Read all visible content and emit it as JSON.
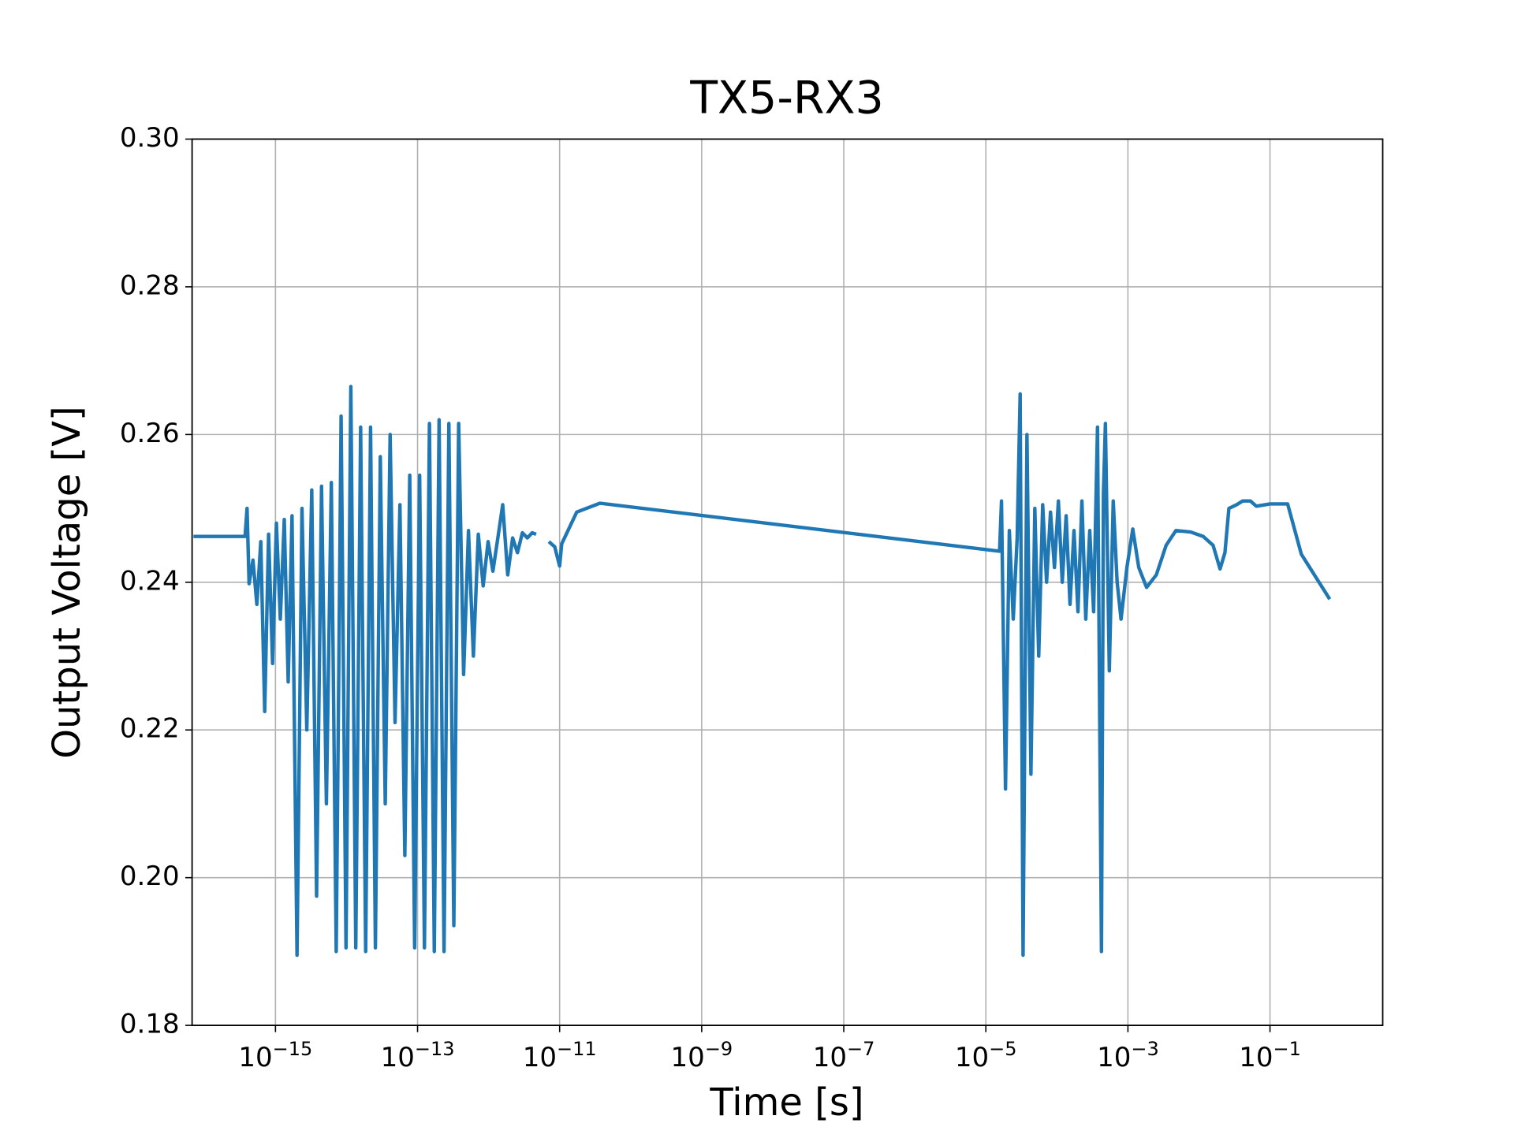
{
  "chart_data": {
    "type": "line",
    "title": "TX5-RX3",
    "x_label": "Time [s]",
    "y_label": "Output Voltage [V]",
    "xscale": "log",
    "grid": true,
    "xlim": [
      6.7e-17,
      3.86
    ],
    "ylim": [
      0.18,
      0.3
    ],
    "xticks": [
      {
        "value": 1e-15,
        "label": "10−15"
      },
      {
        "value": 1e-13,
        "label": "10−13"
      },
      {
        "value": 1e-11,
        "label": "10−11"
      },
      {
        "value": 1e-09,
        "label": "10−9"
      },
      {
        "value": 1e-07,
        "label": "10−7"
      },
      {
        "value": 1e-05,
        "label": "10−5"
      },
      {
        "value": 0.001,
        "label": "10−3"
      },
      {
        "value": 0.1,
        "label": "10−1"
      }
    ],
    "yticks": [
      0.18,
      {
        "value": 0.2,
        "label": "0.20"
      },
      0.22,
      0.24,
      0.26,
      0.28,
      {
        "value": 0.3,
        "label": "0.30"
      }
    ],
    "series": [
      {
        "name": "TX5-RX3",
        "color": "#1f77b4",
        "x": [
          7e-17,
          3.73e-16,
          3.98e-16,
          4.25e-16,
          4.82e-16,
          5.47e-16,
          6.21e-16,
          7.05e-16,
          8e-16,
          9.1e-16,
          1.03e-15,
          1.17e-15,
          1.33e-15,
          1.51e-15,
          1.71e-15,
          2.01e-15,
          2.36e-15,
          2.76e-15,
          3.24e-15,
          3.79e-15,
          4.45e-15,
          5.21e-15,
          6.11e-15,
          7.16e-15,
          8.39e-15,
          9.84e-15,
          1.15e-14,
          1.35e-14,
          1.58e-14,
          1.86e-14,
          2.18e-14,
          2.55e-14,
          2.99e-14,
          3.51e-14,
          4.11e-14,
          4.82e-14,
          5.65e-14,
          6.62e-14,
          7.76e-14,
          9.1e-14,
          1.07e-13,
          1.25e-13,
          1.47e-13,
          1.72e-13,
          2.01e-13,
          2.36e-13,
          2.76e-13,
          3.24e-13,
          3.79e-13,
          4.45e-13,
          5.21e-13,
          6.11e-13,
          7.16e-13,
          8.39e-13,
          9.84e-13,
          1.15e-12,
          1.35e-12,
          1.58e-12,
          1.86e-12,
          2.18e-12,
          2.55e-12,
          2.99e-12,
          3.51e-12,
          4.11e-12,
          4.67e-12,
          5.5e-12,
          7.05e-12,
          8.53e-12,
          1e-11,
          1.07e-11,
          1.74e-11,
          3.68e-11,
          1.56e-05,
          1.66e-05,
          1.89e-05,
          2.14e-05,
          2.43e-05,
          2.76e-05,
          3.04e-05,
          3.34e-05,
          3.79e-05,
          4.31e-05,
          4.89e-05,
          5.55e-05,
          6.31e-05,
          7.16e-05,
          8.13e-05,
          9.24e-05,
          0.000105,
          0.000119,
          0.000135,
          0.000153,
          0.000174,
          0.000198,
          0.000225,
          0.000255,
          0.00029,
          0.000329,
          0.000373,
          0.000424,
          0.000452,
          0.000482,
          0.000547,
          0.000621,
          0.000705,
          0.0008,
          0.000968,
          0.00117,
          0.00142,
          0.00183,
          0.00251,
          0.00345,
          0.00474,
          0.00764,
          0.0115,
          0.0158,
          0.0198,
          0.0232,
          0.0264,
          0.034,
          0.0411,
          0.053,
          0.0641,
          0.1,
          0.177,
          0.276,
          0.693
        ],
        "values": [
          0.2462,
          0.2462,
          0.25,
          0.2398,
          0.243,
          0.237,
          0.2455,
          0.2225,
          0.2465,
          0.229,
          0.248,
          0.235,
          0.2485,
          0.2265,
          0.249,
          0.1895,
          0.25,
          0.22,
          0.2525,
          0.1975,
          0.253,
          0.21,
          0.2535,
          0.19,
          0.2625,
          0.1905,
          0.2665,
          0.1905,
          0.261,
          0.19,
          0.261,
          0.1905,
          0.257,
          0.21,
          0.26,
          0.221,
          0.2505,
          0.203,
          0.2545,
          0.1905,
          0.2545,
          0.1905,
          0.2615,
          0.19,
          0.262,
          0.19,
          0.2615,
          0.1935,
          0.2615,
          0.2275,
          0.247,
          0.23,
          0.2465,
          0.2395,
          0.2455,
          0.2415,
          0.246,
          0.2505,
          0.241,
          0.246,
          0.244,
          0.2467,
          0.246,
          0.2467,
          0.2465,
          null,
          0.2455,
          0.2448,
          0.2422,
          0.2452,
          0.2495,
          0.2507,
          0.2442,
          0.251,
          0.212,
          0.247,
          0.235,
          0.246,
          0.2655,
          0.1895,
          0.26,
          0.214,
          0.25,
          0.23,
          0.2505,
          0.24,
          0.2495,
          0.242,
          0.251,
          0.24,
          0.249,
          0.237,
          0.247,
          0.236,
          0.251,
          0.235,
          0.247,
          0.236,
          0.261,
          0.19,
          0.252,
          0.2615,
          0.228,
          0.251,
          0.24,
          0.235,
          0.242,
          0.2472,
          0.242,
          0.2393,
          0.241,
          0.245,
          0.247,
          0.2468,
          0.2462,
          0.245,
          0.2418,
          0.244,
          0.25,
          0.2505,
          0.251,
          0.251,
          0.2503,
          0.2506,
          0.2506,
          0.2438,
          0.2377
        ]
      }
    ]
  }
}
